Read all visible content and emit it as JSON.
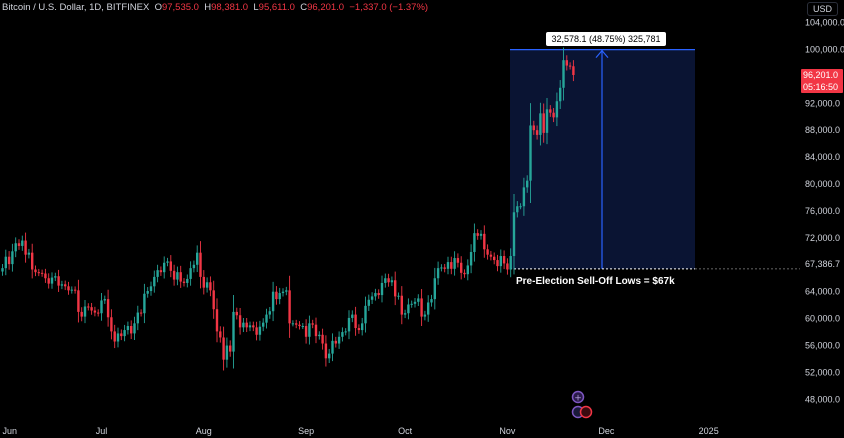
{
  "header": {
    "symbol": "Bitcoin / U.S. Dollar, 1D, BITFINEX",
    "open_label": "O",
    "open": "97,535.0",
    "high_label": "H",
    "high": "98,381.0",
    "low_label": "L",
    "low": "95,611.0",
    "close_label": "C",
    "close": "96,201.0",
    "change": "−1,337.0 (−1.37%)"
  },
  "currency": "USD",
  "price_badge": {
    "price": "96,201.0",
    "countdown": "05:16:50"
  },
  "measure_label": "32,578.1 (48.75%) 325,781",
  "annotation": "Pre-Election Sell-Off Lows = $67k",
  "low_level_label": "67,386.7",
  "colors": {
    "up": "#26a69a",
    "down": "#f23645",
    "measure_line": "#2962ff",
    "measure_fill": "#0a1433"
  },
  "chart_data": {
    "type": "candlestick",
    "ylim": [
      45000,
      106000
    ],
    "y_ticks": [
      104000,
      100000,
      96000,
      92000,
      88000,
      84000,
      80000,
      76000,
      72000,
      67386.7,
      64000,
      60000,
      56000,
      52000,
      48000
    ],
    "y_tick_labels": [
      "104,000.0",
      "100,000.0",
      "96,000.0",
      "92,000.0",
      "88,000.0",
      "84,000.0",
      "80,000.0",
      "76,000.0",
      "72,000.0",
      "67,386.7",
      "64,000.0",
      "60,000.0",
      "56,000.0",
      "52,000.0",
      "48,000.0"
    ],
    "x_labels": [
      "Jun",
      "Jul",
      "Aug",
      "Sep",
      "Oct",
      "Nov",
      "Dec",
      "2025"
    ],
    "x_label_day_index": [
      0,
      30,
      61,
      92,
      122,
      153,
      183,
      214
    ],
    "closes": [
      67500,
      69200,
      68100,
      70000,
      71200,
      70800,
      71600,
      69500,
      69800,
      67300,
      66900,
      66800,
      66700,
      66000,
      65200,
      66100,
      66300,
      64900,
      65100,
      64800,
      64200,
      64300,
      64200,
      61000,
      60300,
      61800,
      61700,
      61200,
      60900,
      60800,
      62700,
      62900,
      60200,
      58100,
      56600,
      57800,
      57400,
      58300,
      58900,
      57800,
      59300,
      60900,
      60800,
      63700,
      64100,
      64800,
      66200,
      67200,
      66900,
      68300,
      68500,
      67100,
      65800,
      66900,
      65500,
      65300,
      65900,
      67500,
      68000,
      69800,
      66200,
      64600,
      65400,
      64200,
      61400,
      58100,
      57200,
      53900,
      56000,
      55100,
      61000,
      60500,
      58700,
      59400,
      58700,
      59000,
      58700,
      57600,
      58800,
      59400,
      60600,
      61100,
      64000,
      62900,
      63800,
      64000,
      64200,
      59300,
      59300,
      59100,
      58900,
      58900,
      57300,
      59300,
      59100,
      57400,
      57600,
      56300,
      54100,
      54800,
      56700,
      56300,
      57300,
      58000,
      58100,
      60100,
      60600,
      58600,
      58300,
      59300,
      61900,
      62800,
      63300,
      63800,
      63500,
      65300,
      66000,
      65400,
      65700,
      63300,
      63400,
      60600,
      60800,
      62100,
      62200,
      62500,
      63000,
      60300,
      60600,
      62400,
      62900,
      66000,
      67500,
      67600,
      67400,
      68400,
      67400,
      69000,
      68300,
      66800,
      66600,
      67900,
      69900,
      72700,
      72300,
      72600,
      70300,
      69500,
      69200,
      68700,
      67800,
      69300,
      68200,
      67300,
      69300,
      75800,
      76700,
      76700,
      79500,
      80500,
      88700,
      88000,
      87300,
      90500,
      87600,
      91100,
      90600,
      89900,
      92300,
      94300,
      98400,
      97600,
      97500,
      96200
    ],
    "measure": {
      "from": 67386.7,
      "to": 99964.8,
      "change": 32578.1,
      "percent": 48.75
    }
  }
}
